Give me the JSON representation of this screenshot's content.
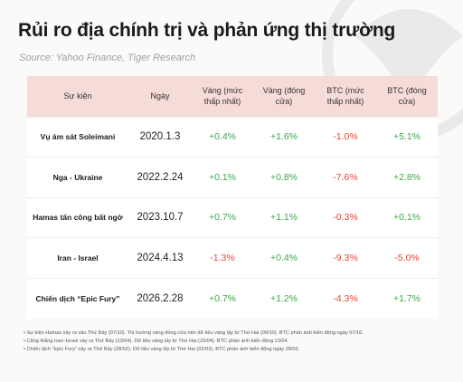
{
  "title": "Rủi ro địa chính trị và phản ứng thị trường",
  "source": "Source: Yahoo Finance, Tiger Research",
  "table": {
    "headers": [
      "Sự kiện",
      "Ngày",
      "Vàng (mức thấp nhất)",
      "Vàng (đóng cửa)",
      "BTC (mức thấp nhất)",
      "BTC (đóng cửa)"
    ],
    "rows": [
      {
        "event": "Vụ ám sát Soleimani",
        "date": "2020.1.3",
        "gold_low": "+0.4%",
        "gold_close": "+1.6%",
        "btc_low": "-1.0%",
        "btc_close": "+5.1%"
      },
      {
        "event": "Nga - Ukraine",
        "date": "2022.2.24",
        "gold_low": "+0.1%",
        "gold_close": "+0.8%",
        "btc_low": "-7.6%",
        "btc_close": "+2.8%"
      },
      {
        "event": "Hamas tấn công bất ngờ",
        "date": "2023.10.7",
        "gold_low": "+0.7%",
        "gold_close": "+1.1%",
        "btc_low": "-0.3%",
        "btc_close": "+0.1%"
      },
      {
        "event": "Iran - Israel",
        "date": "2024.4.13",
        "gold_low": "-1.3%",
        "gold_close": "+0.4%",
        "btc_low": "-9.3%",
        "btc_close": "-5.0%"
      },
      {
        "event": "Chiến dịch “Epic Fury”",
        "date": "2026.2.28",
        "gold_low": "+0.7%",
        "gold_close": "+1.2%",
        "btc_low": "-4.3%",
        "btc_close": "+1.7%"
      }
    ]
  },
  "notes": [
    "Sự kiện Hamas xảy ra vào Thứ Bảy (07/10). Thị trường vàng đóng cửa nên dữ liệu vàng lấy từ Thứ Hai (09/10). BTC phản ánh biến động ngày 07/10.",
    "Căng thẳng Iran–Israel xảy ra Thứ Bảy (13/04). Dữ liệu vàng lấy từ Thứ Hai (15/04). BTC phản ánh biến động 13/04.",
    "Chiến dịch “Epic Fury” xảy ra Thứ Bảy (28/02). Dữ liệu vàng lấy từ Thứ Hai (02/03). BTC phản ánh biến động ngày 28/02."
  ],
  "colors": {
    "header_bg": "#f6dcd8",
    "positive": "#3aa84a",
    "negative": "#e0473b"
  }
}
